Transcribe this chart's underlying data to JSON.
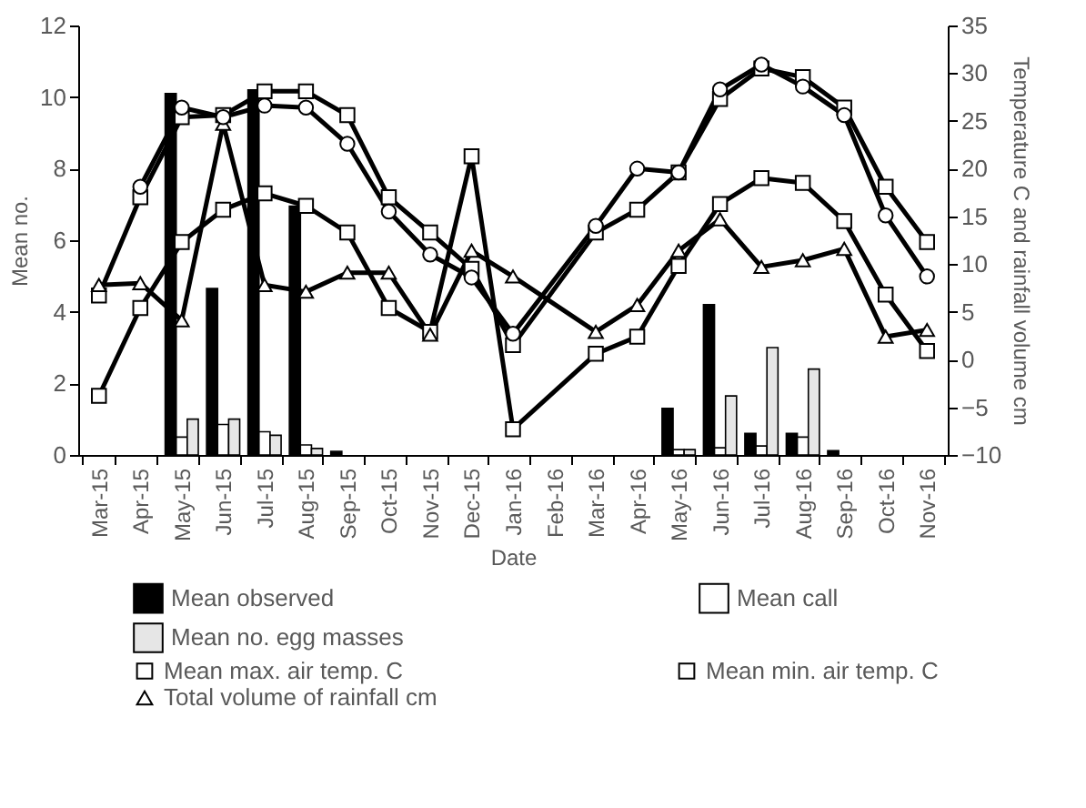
{
  "chart_data": {
    "type": "bar",
    "xlabel": "Date",
    "ylabel": "Mean no.",
    "y2label": "Temperature  C and rainfall volume cm",
    "categories": [
      "Mar-15",
      "Apr-15",
      "May-15",
      "Jun-15",
      "Jul-15",
      "Aug-15",
      "Sep-15",
      "Oct-15",
      "Nov-15",
      "Dec-15",
      "Jan-16",
      "Feb-16",
      "Mar-16",
      "Apr-16",
      "May-16",
      "Jun-16",
      "Jul-16",
      "Aug-16",
      "Sep-16",
      "Oct-16",
      "Nov-16"
    ],
    "series": [
      {
        "name": "Mean observed",
        "color": "#000000",
        "values": [
          null,
          null,
          10.1,
          4.65,
          10.2,
          6.95,
          0.1,
          null,
          null,
          null,
          null,
          null,
          null,
          null,
          1.3,
          4.2,
          0.6,
          0.6,
          0.12,
          null,
          null
        ]
      },
      {
        "name": "Mean call",
        "color": "#ffffff",
        "values": [
          null,
          null,
          0.5,
          0.85,
          0.65,
          0.28,
          null,
          null,
          null,
          null,
          null,
          null,
          null,
          null,
          0.15,
          0.2,
          0.25,
          0.5,
          null,
          null,
          null
        ]
      },
      {
        "name": "Mean no. egg masses",
        "color": "#e6e6e6",
        "values": [
          null,
          null,
          1.0,
          1.0,
          0.55,
          0.18,
          null,
          null,
          null,
          null,
          null,
          null,
          null,
          null,
          0.15,
          1.65,
          3.0,
          2.4,
          null,
          null,
          null
        ]
      },
      {
        "name": "Mean max. air temp. C",
        "type": "line",
        "axis": "y2",
        "color": "#000000",
        "marker": "square",
        "values": [
          6.7,
          17.0,
          25.4,
          25.6,
          28.1,
          28.1,
          25.6,
          17.0,
          13.3,
          9.5,
          1.5,
          null,
          13.3,
          15.7,
          19.6,
          27.3,
          30.5,
          29.6,
          26.4,
          18.1,
          12.3
        ]
      },
      {
        "name": "Mean min. air temp. C",
        "type": "line",
        "axis": "y2",
        "color": "#000000",
        "marker": "square",
        "values": [
          -3.8,
          5.4,
          12.3,
          15.7,
          17.4,
          16.1,
          13.3,
          5.4,
          2.9,
          21.3,
          -7.3,
          null,
          0.6,
          2.4,
          9.8,
          16.3,
          19.0,
          18.5,
          14.5,
          6.8,
          0.9
        ]
      },
      {
        "name": "Total volume of rainfall cm",
        "type": "line",
        "axis": "y2",
        "color": "#000000",
        "marker": "triangle",
        "values": [
          7.8,
          8.0,
          4.1,
          24.7,
          7.8,
          7.1,
          9.1,
          9.1,
          2.6,
          11.4,
          8.7,
          null,
          2.9,
          5.7,
          11.4,
          14.7,
          9.7,
          10.4,
          11.6,
          2.4,
          3.1
        ]
      },
      {
        "type": "line",
        "axis": "y2",
        "color": "#000000",
        "marker": "circle",
        "values": [
          null,
          18.1,
          26.4,
          25.4,
          26.6,
          26.4,
          22.6,
          15.5,
          11.0,
          8.6,
          2.7,
          null,
          14.0,
          20.0,
          19.6,
          28.3,
          30.9,
          28.6,
          25.6,
          15.1,
          8.7
        ]
      }
    ],
    "ylim": [
      0,
      12
    ],
    "yticks": [
      0,
      2,
      4,
      6,
      8,
      10,
      12
    ],
    "y2lim": [
      -10,
      35
    ],
    "y2ticks": [
      -10,
      -5,
      0,
      5,
      10,
      15,
      20,
      25,
      30,
      35
    ],
    "legend": "bottom",
    "line_style": "solid"
  }
}
